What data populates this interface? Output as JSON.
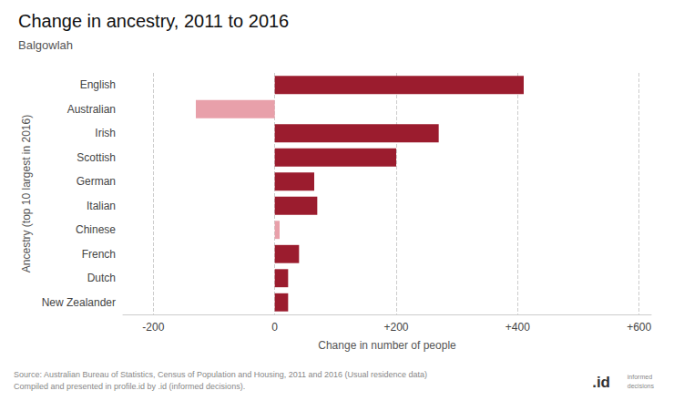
{
  "chart_data": {
    "type": "bar",
    "orientation": "horizontal",
    "title": "Change in ancestry, 2011 to 2016",
    "subtitle": "Balgowlah",
    "categories": [
      "English",
      "Australian",
      "Irish",
      "Scottish",
      "German",
      "Italian",
      "Chinese",
      "French",
      "Dutch",
      "New Zealander"
    ],
    "values": [
      410,
      -130,
      270,
      200,
      65,
      70,
      8,
      40,
      22,
      22
    ],
    "colors": [
      "#9b1c2e",
      "#e8a0aa",
      "#9b1c2e",
      "#9b1c2e",
      "#9b1c2e",
      "#9b1c2e",
      "#e8a0aa",
      "#9b1c2e",
      "#9b1c2e",
      "#9b1c2e"
    ],
    "xlabel": "Change in number of people",
    "ylabel": "Ancestry (top 10 largest in 2016)",
    "xlim": [
      -250,
      620
    ],
    "xticks": [
      -200,
      0,
      {
        "value": 200,
        "label": "+200"
      },
      {
        "value": 400,
        "label": "+400"
      },
      {
        "value": 600,
        "label": "+600"
      }
    ],
    "grid": true,
    "annotations": [
      "Source: Australian Bureau of Statistics, Census of Population and Housing, 2011 and 2016 (Usual residence data)",
      "Compiled and presented in profile.id by .id (informed decisions).",
      ".id",
      "informed\ndecisions"
    ]
  }
}
